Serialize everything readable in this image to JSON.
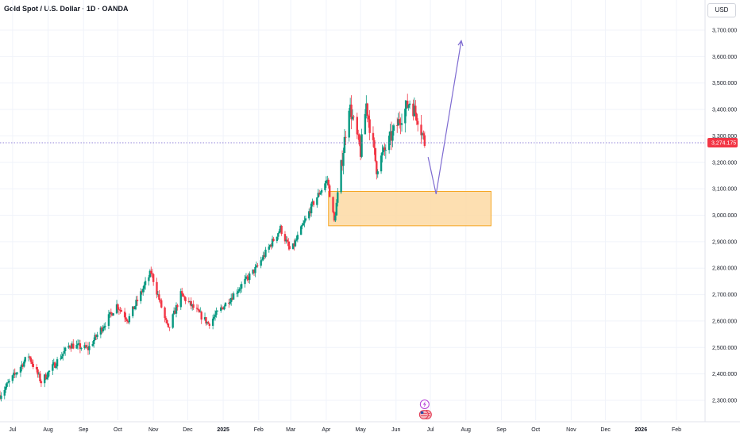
{
  "header": {
    "title": "Gold Spot / U.S. Dollar · 1D · OANDA",
    "currency": "USD"
  },
  "colors": {
    "up": "#089981",
    "down": "#f23645",
    "zone_fill": "#fdd9a3",
    "zone_stroke": "#f5a623",
    "arrow": "#7e6bd1",
    "price_line": "#7e6bd1",
    "price_tag": "#f23645",
    "grid": "#f0f3fa"
  },
  "chart_data": {
    "type": "candlestick",
    "symbol": "Gold Spot / U.S. Dollar",
    "interval": "1D",
    "source": "OANDA",
    "ylim": [
      2250,
      3800
    ],
    "y_ticks": [
      "2,300.000",
      "2,400.000",
      "2,500.000",
      "2,600.000",
      "2,700.000",
      "2,800.000",
      "2,900.000",
      "3,000.000",
      "3,100.000",
      "3,200.000",
      "3,300.000",
      "3,400.000",
      "3,500.000",
      "3,600.000",
      "3,700.000"
    ],
    "x_ticks": [
      "Jul",
      "Aug",
      "Sep",
      "Oct",
      "Nov",
      "Dec",
      "2025",
      "Feb",
      "Mar",
      "Apr",
      "May",
      "Jun",
      "Jul",
      "Aug",
      "Sep",
      "Oct",
      "Nov",
      "Dec",
      "2026",
      "Feb"
    ],
    "last_price": "3,274.175",
    "anchors": [
      [
        "2024-06-20",
        2320
      ],
      [
        "2024-07-15",
        2470
      ],
      [
        "2024-07-26",
        2370
      ],
      [
        "2024-08-20",
        2510
      ],
      [
        "2024-09-05",
        2495
      ],
      [
        "2024-09-30",
        2660
      ],
      [
        "2024-10-10",
        2605
      ],
      [
        "2024-10-30",
        2785
      ],
      [
        "2024-11-14",
        2565
      ],
      [
        "2024-11-25",
        2700
      ],
      [
        "2024-12-19",
        2590
      ],
      [
        "2025-01-30",
        2800
      ],
      [
        "2025-02-20",
        2950
      ],
      [
        "2025-03-01",
        2860
      ],
      [
        "2025-03-20",
        3040
      ],
      [
        "2025-04-02",
        3135
      ],
      [
        "2025-04-08",
        2975
      ],
      [
        "2025-04-21",
        3420
      ],
      [
        "2025-05-01",
        3240
      ],
      [
        "2025-05-06",
        3420
      ],
      [
        "2025-05-15",
        3180
      ],
      [
        "2025-06-05",
        3370
      ],
      [
        "2025-06-13",
        3430
      ],
      [
        "2025-06-20",
        3370
      ],
      [
        "2025-06-26",
        3274
      ]
    ],
    "projection_zone": {
      "x_start": "2025-04-03",
      "x_end": "2025-08-23",
      "y_low": 2960,
      "y_high": 3090
    },
    "projection_path": [
      [
        "2025-06-29",
        3220
      ],
      [
        "2025-07-06",
        3080
      ],
      [
        "2025-07-28",
        3660
      ]
    ]
  },
  "events": {
    "icon_a": "lightning-icon",
    "icon_b": "us-flag-icon"
  }
}
